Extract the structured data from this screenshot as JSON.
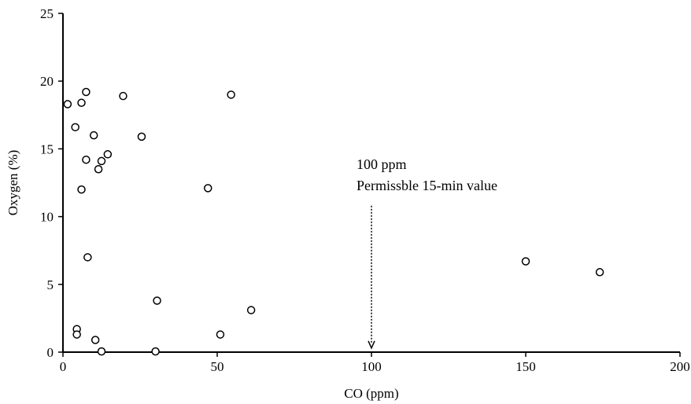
{
  "chart_data": {
    "type": "scatter",
    "title": "",
    "xlabel": "CO (ppm)",
    "ylabel": "Oxygen (%)",
    "xlim": [
      0,
      200
    ],
    "ylim": [
      0,
      25
    ],
    "x_ticks": [
      0,
      50,
      100,
      150,
      200
    ],
    "y_ticks": [
      0,
      5,
      10,
      15,
      20,
      25
    ],
    "grid": false,
    "legend": "none",
    "series": [
      {
        "marker": "open-circle",
        "color": "#000000",
        "points": [
          {
            "x": 1.5,
            "y": 18.3
          },
          {
            "x": 4.0,
            "y": 16.6
          },
          {
            "x": 6.0,
            "y": 18.4
          },
          {
            "x": 7.5,
            "y": 19.2
          },
          {
            "x": 19.5,
            "y": 18.9
          },
          {
            "x": 54.5,
            "y": 19.0
          },
          {
            "x": 10.0,
            "y": 16.0
          },
          {
            "x": 25.5,
            "y": 15.9
          },
          {
            "x": 14.5,
            "y": 14.6
          },
          {
            "x": 7.5,
            "y": 14.2
          },
          {
            "x": 12.5,
            "y": 14.1
          },
          {
            "x": 11.5,
            "y": 13.5
          },
          {
            "x": 6.0,
            "y": 12.0
          },
          {
            "x": 47.0,
            "y": 12.1
          },
          {
            "x": 8.0,
            "y": 7.0
          },
          {
            "x": 150.0,
            "y": 6.7
          },
          {
            "x": 174.0,
            "y": 5.9
          },
          {
            "x": 30.5,
            "y": 3.8
          },
          {
            "x": 61.0,
            "y": 3.1
          },
          {
            "x": 4.5,
            "y": 1.7
          },
          {
            "x": 4.5,
            "y": 1.3
          },
          {
            "x": 51.0,
            "y": 1.3
          },
          {
            "x": 10.5,
            "y": 0.9
          },
          {
            "x": 12.5,
            "y": 0.05
          },
          {
            "x": 30.0,
            "y": 0.05
          }
        ]
      }
    ],
    "annotations": [
      {
        "lines": [
          "100 ppm",
          "Permissble 15-min value"
        ],
        "arrow_x": 100,
        "arrow_from_y": 10.8,
        "arrow_to_y": 0.3,
        "arrow_style": "dotted"
      }
    ]
  }
}
